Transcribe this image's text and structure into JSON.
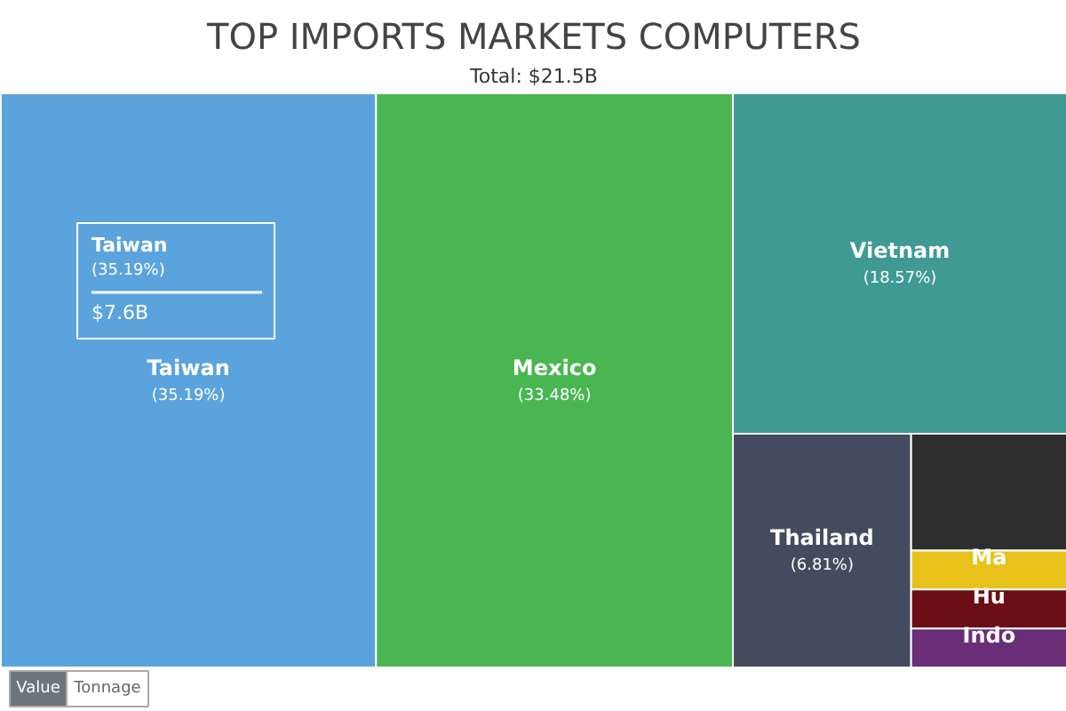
{
  "chart_data": {
    "type": "other",
    "title": "TOP IMPORTS MARKETS COMPUTERS",
    "subtitle": "Total: $21.5B",
    "categories": [
      "Taiwan",
      "Mexico",
      "Vietnam",
      "Thailand",
      null,
      "Ma",
      "Hu",
      "Indo"
    ],
    "values": [
      35.19,
      33.48,
      18.57,
      6.81,
      null,
      null,
      null,
      null
    ],
    "value_labels": [
      "(35.19%)",
      "(33.48%)",
      "(18.57%)",
      "(6.81%)",
      null,
      null,
      null,
      null
    ],
    "colors": [
      "#5ba3dc",
      "#4ab651",
      "#3f9a93",
      "#434c5e",
      "#2e2e2e",
      "#e8c21a",
      "#6b0f14",
      "#6a2d77"
    ],
    "annotations": [
      "Taiwan\n(35.19%)\n$7.6B",
      "Value",
      "Tonnage"
    ]
  }
}
